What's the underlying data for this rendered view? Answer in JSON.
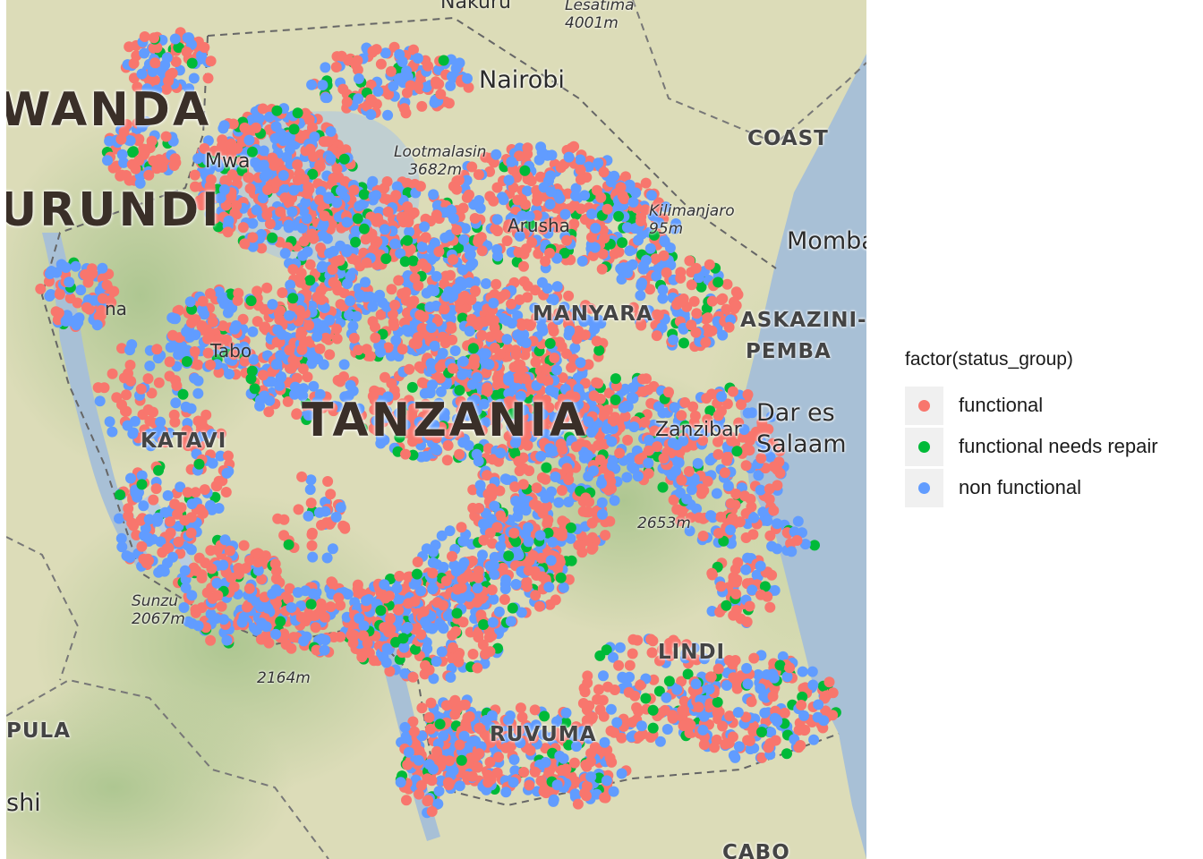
{
  "legend": {
    "title": "factor(status_group)",
    "items": [
      {
        "label": "functional",
        "color": "#F8766D"
      },
      {
        "label": "functional needs repair",
        "color": "#00BA38"
      },
      {
        "label": "non functional",
        "color": "#619CFF"
      }
    ]
  },
  "map_labels": {
    "nakuru": "Nakuru",
    "lesatima": "Lesatima",
    "lesatima_elev": "4001m",
    "nairobi": "Nairobi",
    "rwanda": "WANDA",
    "burundi": "URUNDI",
    "coast": "COAST",
    "mwanza": "Mwa",
    "lootmalasin": "Lootmalasin",
    "lootmalasin_elev": "3682m",
    "arusha": "Arusha",
    "kilimanjaro": "Kilimanjaro",
    "kilimanjaro_elev": "95m",
    "mombasa": "Momba",
    "manyara": "MANYARA",
    "kaskazini": "ASKAZINI-",
    "pemba": "PEMBA",
    "kigoma": "na",
    "tabora": "Tabo",
    "tanzania": "TANZANIA",
    "katavi": "KATAVI",
    "zanzibar": "Zanzibar",
    "dar1": "Dar es",
    "dar2": "Salaam",
    "nguru_elev": "2653m",
    "sunzu": "Sunzu",
    "sunzu_elev": "2067m",
    "peak2164": "2164m",
    "lindi": "LINDI",
    "luapula": "PULA",
    "ruvuma": "RUVUMA",
    "kinshi": "shi",
    "cabo": "CABO"
  },
  "points_summary": {
    "status_groups": [
      "functional",
      "functional needs repair",
      "non functional"
    ]
  }
}
